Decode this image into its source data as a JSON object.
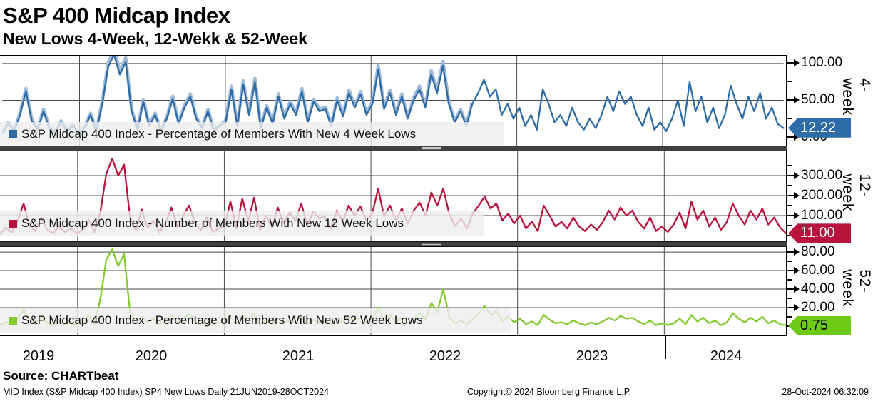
{
  "header": {
    "title": "S&P 400 Midcap Index",
    "subtitle": "New Lows 4-Week, 12-Wekk & 52-Week"
  },
  "source_line": "Source: CHARTbeat",
  "footer": {
    "left": "MID Index (S&P Midcap 400 Index) SP4 New Lows  Daily 21JUN2019-28OCT2024",
    "center": "Copyright© 2024 Bloomberg Finance L.P.",
    "right": "28-Oct-2024 06:32:09"
  },
  "chart_data": {
    "type": "line",
    "x_axis": {
      "start_label": "21JUN2019",
      "end_label": "28OCT2024",
      "year_labels": [
        "2019",
        "2020",
        "2021",
        "2022",
        "2023",
        "2024"
      ]
    },
    "grid": "on",
    "legend_position": "inside-lower-left",
    "panels": [
      {
        "id": "4w",
        "axis_label": "4-week",
        "legend": "S&P Midcap 400 Index - Percentage of Members With New 4 Week Lows",
        "color": "#2e6ca8",
        "halo_color": "#9fbbd8",
        "halo_end_fraction": 0.6,
        "last_value": 12.22,
        "tag": {
          "text": "12.22",
          "bg": "#2e6ca8",
          "fg": "#ffffff"
        },
        "ylim": [
          0,
          114
        ],
        "ticks": [
          {
            "value": 0,
            "label": "0.00"
          },
          {
            "value": 50,
            "label": "50.00"
          },
          {
            "value": 100,
            "label": "100.00"
          }
        ],
        "minor_ticks": [
          25,
          75
        ],
        "values": [
          5,
          18,
          8,
          30,
          62,
          22,
          10,
          35,
          12,
          6,
          20,
          8,
          15,
          5,
          12,
          30,
          8,
          45,
          95,
          112,
          85,
          102,
          35,
          10,
          48,
          15,
          30,
          8,
          25,
          52,
          18,
          40,
          55,
          25,
          12,
          35,
          8,
          15,
          20,
          65,
          15,
          72,
          30,
          75,
          12,
          40,
          18,
          55,
          25,
          45,
          30,
          62,
          20,
          48,
          35,
          38,
          15,
          50,
          28,
          60,
          40,
          58,
          30,
          45,
          92,
          38,
          60,
          30,
          55,
          25,
          50,
          65,
          40,
          85,
          60,
          97,
          45,
          20,
          35,
          15,
          45,
          60,
          78,
          55,
          65,
          30,
          45,
          25,
          40,
          15,
          30,
          10,
          65,
          45,
          20,
          30,
          15,
          40,
          20,
          10,
          25,
          12,
          30,
          55,
          35,
          62,
          45,
          55,
          30,
          15,
          40,
          10,
          20,
          8,
          25,
          50,
          15,
          75,
          35,
          55,
          20,
          40,
          12,
          30,
          70,
          45,
          25,
          55,
          35,
          60,
          25,
          40,
          18,
          12.22
        ]
      },
      {
        "id": "12w",
        "axis_label": "12-week",
        "legend": "S&P Midcap 400 Index - Number of Members With New 12 Week Lows",
        "color": "#b8123d",
        "halo_color": null,
        "halo_end_fraction": 0,
        "last_value": 11.0,
        "tag": {
          "text": "11.00",
          "bg": "#b8123d",
          "fg": "#ffffff"
        },
        "ylim": [
          0,
          420
        ],
        "ticks": [
          {
            "value": 0,
            "label": "0.00"
          },
          {
            "value": 100,
            "label": "100.00"
          },
          {
            "value": 200,
            "label": "200.00"
          },
          {
            "value": 300,
            "label": "300.00"
          }
        ],
        "minor_ticks": [
          50,
          150,
          250,
          350
        ],
        "values": [
          8,
          40,
          15,
          75,
          160,
          50,
          22,
          90,
          28,
          12,
          45,
          16,
          35,
          10,
          28,
          80,
          18,
          120,
          310,
          385,
          300,
          355,
          90,
          25,
          130,
          38,
          75,
          18,
          60,
          140,
          45,
          100,
          150,
          60,
          28,
          90,
          18,
          35,
          48,
          170,
          35,
          185,
          70,
          190,
          28,
          100,
          40,
          140,
          60,
          115,
          75,
          160,
          48,
          120,
          85,
          95,
          35,
          125,
          70,
          150,
          100,
          145,
          75,
          110,
          235,
          95,
          150,
          75,
          135,
          60,
          125,
          165,
          100,
          215,
          150,
          235,
          110,
          48,
          85,
          35,
          110,
          150,
          195,
          135,
          160,
          75,
          110,
          60,
          100,
          35,
          70,
          22,
          150,
          100,
          45,
          68,
          35,
          90,
          45,
          22,
          55,
          28,
          68,
          125,
          80,
          140,
          100,
          125,
          68,
          35,
          90,
          22,
          45,
          18,
          55,
          115,
          35,
          170,
          80,
          125,
          45,
          90,
          28,
          68,
          160,
          100,
          55,
          125,
          80,
          135,
          55,
          90,
          40,
          11
        ]
      },
      {
        "id": "52w",
        "axis_label": "52-week",
        "legend": "S&P Midcap 400 Index - Percentage of Members With New 52 Week Lows",
        "color": "#84c92f",
        "halo_color": null,
        "halo_end_fraction": 0,
        "last_value": 0.75,
        "tag": {
          "text": "0.75",
          "bg": "#6ecb15",
          "fg": "#000000"
        },
        "ylim": [
          0,
          86
        ],
        "ticks": [
          {
            "value": 0,
            "label": "0.00"
          },
          {
            "value": 20,
            "label": "20.00"
          },
          {
            "value": 40,
            "label": "40.00"
          },
          {
            "value": 60,
            "label": "60.00"
          },
          {
            "value": 80,
            "label": "80.00"
          }
        ],
        "minor_ticks": [
          10,
          30,
          50,
          70
        ],
        "values": [
          1,
          4,
          2,
          8,
          18,
          6,
          2,
          10,
          3,
          1,
          5,
          2,
          3,
          1,
          3,
          12,
          2,
          30,
          72,
          83,
          65,
          78,
          15,
          3,
          10,
          4,
          8,
          2,
          5,
          12,
          3,
          8,
          14,
          5,
          2,
          8,
          2,
          4,
          3,
          10,
          2,
          12,
          4,
          14,
          1,
          6,
          2,
          8,
          3,
          6,
          4,
          10,
          2,
          7,
          5,
          5,
          2,
          8,
          4,
          10,
          6,
          9,
          4,
          8,
          20,
          6,
          12,
          4,
          9,
          3,
          8,
          14,
          7,
          25,
          15,
          40,
          10,
          3,
          6,
          2,
          8,
          14,
          22,
          12,
          16,
          5,
          10,
          4,
          8,
          2,
          5,
          1,
          12,
          7,
          3,
          4,
          2,
          6,
          3,
          1,
          4,
          2,
          5,
          9,
          6,
          11,
          8,
          9,
          5,
          2,
          6,
          1,
          3,
          1,
          3,
          8,
          2,
          12,
          5,
          9,
          3,
          6,
          1,
          4,
          14,
          8,
          4,
          9,
          5,
          10,
          3,
          6,
          2,
          0.75
        ]
      }
    ]
  }
}
